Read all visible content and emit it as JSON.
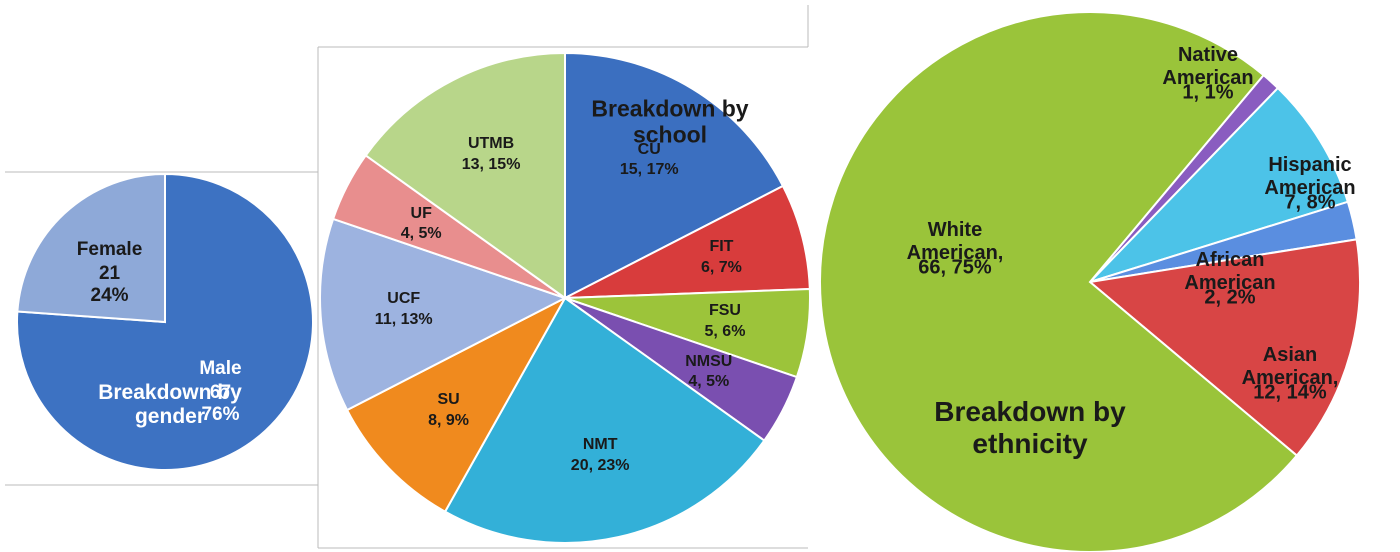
{
  "chart_data": [
    {
      "type": "pie",
      "title": "Breakdown by gender",
      "categories": [
        "Male",
        "Female"
      ],
      "values": [
        67,
        21
      ],
      "value_labels": [
        "67\n76%",
        "21\n24%"
      ],
      "colors": [
        "#3d72c2",
        "#8ea9d8"
      ]
    },
    {
      "type": "pie",
      "title": "Breakdown by school",
      "categories": [
        "CU",
        "FIT",
        "FSU",
        "NMSU",
        "NMT",
        "SU",
        "UCF",
        "UF",
        "UTMB"
      ],
      "values": [
        15,
        6,
        5,
        4,
        20,
        8,
        11,
        4,
        13
      ],
      "value_labels": [
        "15, 17%",
        "6, 7%",
        "5, 6%",
        "4, 5%",
        "20, 23%",
        "8, 9%",
        "11, 13%",
        "4, 5%",
        "13, 15%"
      ],
      "colors": [
        "#3b6fc0",
        "#d83c3c",
        "#9cc43a",
        "#7a4fb0",
        "#33b0d8",
        "#f08a1e",
        "#9db3e0",
        "#e88e8e",
        "#b8d68a"
      ]
    },
    {
      "type": "pie",
      "title": "Breakdown by ethnicity",
      "categories": [
        "Native American",
        "Hispanic American",
        "African American",
        "Asian American,",
        "White American,"
      ],
      "values": [
        1,
        7,
        2,
        12,
        66
      ],
      "value_labels": [
        "1, 1%",
        "7, 8%",
        "2, 2%",
        "12, 14%",
        "66, 75%"
      ],
      "colors": [
        "#8a5cc0",
        "#4cc3e8",
        "#5a8ee0",
        "#d84545",
        "#9ac43a"
      ]
    }
  ]
}
